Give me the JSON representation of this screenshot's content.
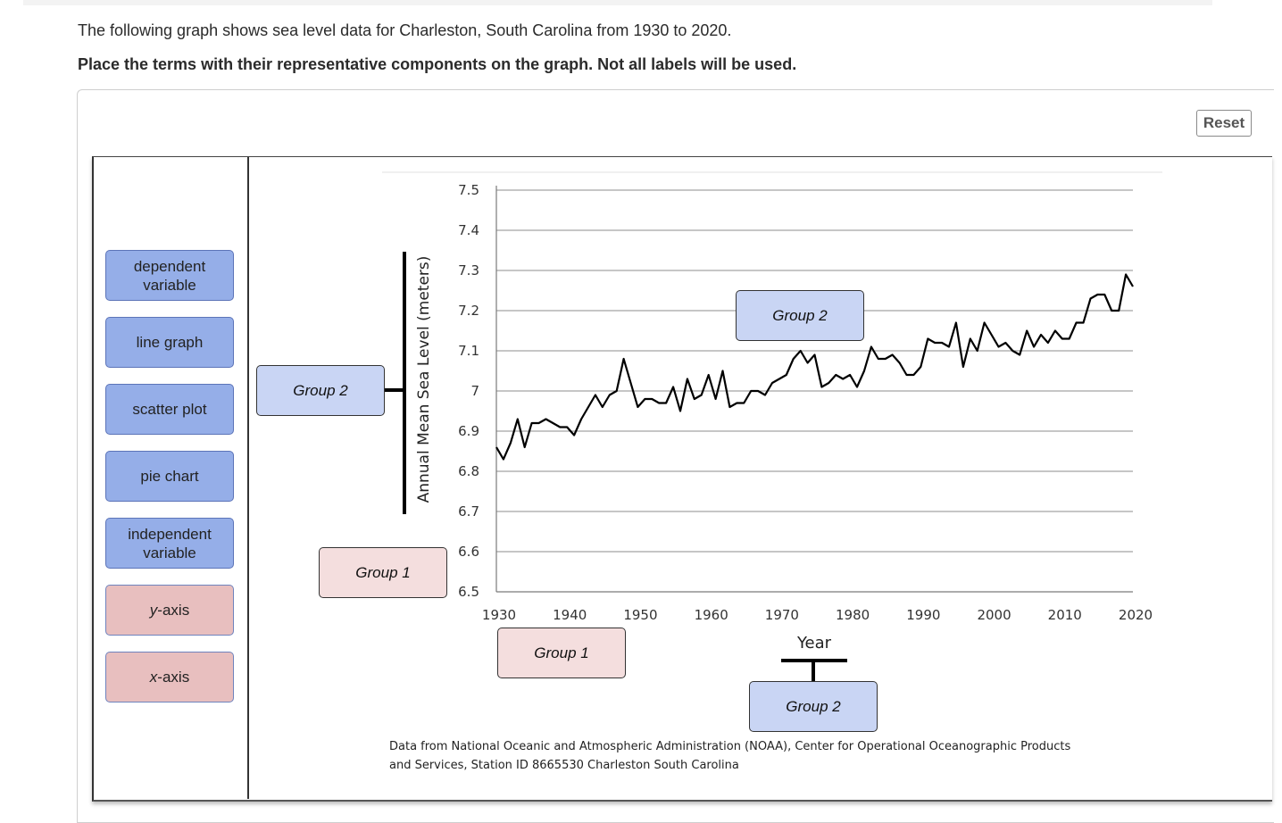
{
  "instructions": {
    "intro": "The following graph shows sea level data for Charleston, South Carolina from 1930 to 2020.",
    "task": "Place the terms with their representative components on the graph. Not all labels will be used."
  },
  "reset_label": "Reset",
  "terms": [
    {
      "label": "dependent variable",
      "group": "Group 2",
      "color": "#95aee8"
    },
    {
      "label": "line graph",
      "group": "Group 2",
      "color": "#95aee8"
    },
    {
      "label": "scatter plot",
      "group": "Group 2",
      "color": "#95aee8"
    },
    {
      "label": "pie chart",
      "group": "Group 2",
      "color": "#95aee8"
    },
    {
      "label": "independent variable",
      "group": "Group 2",
      "color": "#95aee8"
    },
    {
      "label_prefix": "y",
      "label_suffix": "-axis",
      "group": "Group 1",
      "color": "#e8bfbf"
    },
    {
      "label_prefix": "x",
      "label_suffix": "-axis",
      "group": "Group 1",
      "color": "#e8bfbf"
    }
  ],
  "drop_zones": {
    "y_variable": "Group 2",
    "y_axis": "Group 1",
    "line": "Group 2",
    "x_axis": "Group 1",
    "x_variable": "Group 2"
  },
  "credit": [
    "Data from National Oceanic and Atmospheric Administration (NOAA), Center for Operational Oceanographic Products",
    "and Services, Station ID 8665530 Charleston South Carolina"
  ],
  "chart_data": {
    "type": "line",
    "title": "",
    "xlabel": "Year",
    "ylabel": "Annual Mean Sea Level (meters)",
    "xlim": [
      1930,
      2020
    ],
    "ylim": [
      6.5,
      7.5
    ],
    "xticks": [
      "1930",
      "1940",
      "1950",
      "1960",
      "1970",
      "1980",
      "1990",
      "2000",
      "2010",
      "2020"
    ],
    "yticks": [
      "7.5",
      "7.4",
      "7.3",
      "7.2",
      "7.1",
      "7",
      "6.9",
      "6.8",
      "6.7",
      "6.6",
      "6.5"
    ],
    "grid": true,
    "series": [
      {
        "color": "#000000",
        "x": [
          1930,
          1931,
          1932,
          1933,
          1934,
          1935,
          1936,
          1937,
          1938,
          1939,
          1940,
          1941,
          1942,
          1943,
          1944,
          1945,
          1946,
          1947,
          1948,
          1949,
          1950,
          1951,
          1952,
          1953,
          1954,
          1955,
          1956,
          1957,
          1958,
          1959,
          1960,
          1961,
          1962,
          1963,
          1964,
          1965,
          1966,
          1967,
          1968,
          1969,
          1970,
          1971,
          1972,
          1973,
          1974,
          1975,
          1976,
          1977,
          1978,
          1979,
          1980,
          1981,
          1982,
          1983,
          1984,
          1985,
          1986,
          1987,
          1988,
          1989,
          1990,
          1991,
          1992,
          1993,
          1994,
          1995,
          1996,
          1997,
          1998,
          1999,
          2000,
          2001,
          2002,
          2003,
          2004,
          2005,
          2006,
          2007,
          2008,
          2009,
          2010,
          2011,
          2012,
          2013,
          2014,
          2015,
          2016,
          2017,
          2018,
          2019,
          2020
        ],
        "y": [
          6.86,
          6.83,
          6.87,
          6.93,
          6.86,
          6.92,
          6.92,
          6.93,
          6.92,
          6.91,
          6.91,
          6.89,
          6.93,
          6.96,
          6.99,
          6.96,
          6.99,
          7.0,
          7.08,
          7.02,
          6.96,
          6.98,
          6.98,
          6.97,
          6.97,
          7.01,
          6.95,
          7.03,
          6.98,
          6.99,
          7.04,
          6.98,
          7.05,
          6.96,
          6.97,
          6.97,
          7.0,
          7.0,
          6.99,
          7.02,
          7.03,
          7.04,
          7.08,
          7.1,
          7.07,
          7.09,
          7.01,
          7.02,
          7.04,
          7.03,
          7.04,
          7.01,
          7.05,
          7.11,
          7.08,
          7.08,
          7.09,
          7.07,
          7.04,
          7.04,
          7.06,
          7.13,
          7.12,
          7.12,
          7.11,
          7.17,
          7.06,
          7.13,
          7.1,
          7.17,
          7.14,
          7.11,
          7.12,
          7.1,
          7.09,
          7.15,
          7.11,
          7.14,
          7.12,
          7.15,
          7.13,
          7.13,
          7.17,
          7.17,
          7.23,
          7.24,
          7.24,
          7.2,
          7.2,
          7.29,
          7.26
        ]
      }
    ]
  }
}
